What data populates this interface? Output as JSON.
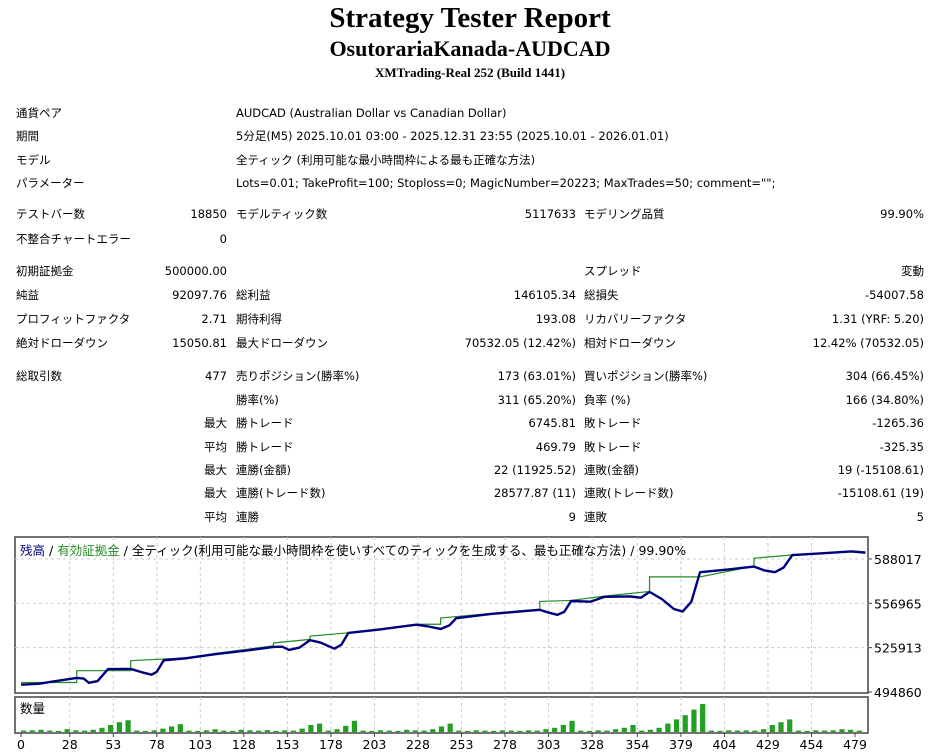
{
  "header": {
    "title": "Strategy Tester Report",
    "subtitle": "OsutorariaKanada-AUDCAD",
    "server": "XMTrading-Real 252 (Build 1441)"
  },
  "info": [
    {
      "label": "通貨ペア",
      "value": "AUDCAD (Australian Dollar vs Canadian Dollar)"
    },
    {
      "label": "期間",
      "value": "5分足(M5) 2025.10.01 03:00 - 2025.12.31 23:55 (2025.10.01 - 2026.01.01)"
    },
    {
      "label": "モデル",
      "value": "全ティック (利用可能な最小時間枠による最も正確な方法)"
    },
    {
      "label": "パラメーター",
      "value": "Lots=0.01; TakeProfit=100; Stoploss=0; MagicNumber=20223; MaxTrades=50; comment=\"\";"
    }
  ],
  "stats": [
    [
      "テストバー数",
      "18850",
      "モデルティック数",
      "5117633",
      "モデリング品質",
      "99.90%"
    ],
    [
      "不整合チャートエラー",
      "0",
      "",
      "",
      "",
      ""
    ],
    [
      "初期証拠金",
      "500000.00",
      "",
      "",
      "スプレッド",
      "変動"
    ],
    [
      "純益",
      "92097.76",
      "総利益",
      "146105.34",
      "総損失",
      "-54007.58"
    ],
    [
      "プロフィットファクタ",
      "2.71",
      "期待利得",
      "193.08",
      "リカバリーファクタ",
      "1.31 (YRF: 5.20)"
    ],
    [
      "絶対ドローダウン",
      "15050.81",
      "最大ドローダウン",
      "70532.05 (12.42%)",
      "相対ドローダウン",
      "12.42% (70532.05)"
    ],
    [
      "総取引数",
      "477",
      "売りポジション(勝率%)",
      "173 (63.01%)",
      "買いポジション(勝率%)",
      "304 (66.45%)"
    ],
    [
      "",
      "",
      "勝率(%)",
      "311 (65.20%)",
      "負率 (%)",
      "166 (34.80%)"
    ],
    [
      "",
      "最大",
      "勝トレード",
      "6745.81",
      "敗トレード",
      "-1265.36"
    ],
    [
      "",
      "平均",
      "勝トレード",
      "469.79",
      "敗トレード",
      "-325.35"
    ],
    [
      "",
      "最大",
      "連勝(金額)",
      "22 (11925.52)",
      "連敗(金額)",
      "19 (-15108.61)"
    ],
    [
      "",
      "最大",
      "連勝(トレード数)",
      "28577.87 (11)",
      "連敗(トレード数)",
      "-15108.61 (19)"
    ],
    [
      "",
      "平均",
      "連勝",
      "9",
      "連敗",
      "5"
    ]
  ],
  "chart_legend": {
    "balance": "残高",
    "sep1": " / ",
    "equity": "有効証拠金",
    "sep2": " / ",
    "model": "全ティック(利用可能な最小時間枠を使いすべてのティックを生成する、最も正確な方法)",
    "sep3": " / ",
    "quality": "99.90%"
  },
  "chart_data": {
    "type": "line",
    "x_ticks": [
      0,
      28,
      53,
      78,
      103,
      128,
      153,
      178,
      203,
      228,
      253,
      278,
      303,
      328,
      354,
      379,
      404,
      429,
      454,
      479
    ],
    "y_ticks": [
      494860,
      525913,
      556965,
      588017
    ],
    "ylim": [
      494860,
      599000
    ],
    "xlim": [
      0,
      485
    ],
    "grid": true,
    "colors": {
      "balance": "#00007f",
      "equity": "#228b22",
      "volume": "#22a022"
    },
    "series": [
      {
        "name": "残高",
        "points": [
          [
            0,
            500000
          ],
          [
            10,
            500600
          ],
          [
            20,
            502500
          ],
          [
            32,
            504700
          ],
          [
            36,
            504300
          ],
          [
            39,
            501300
          ],
          [
            44,
            502500
          ],
          [
            50,
            510900
          ],
          [
            63,
            511000
          ],
          [
            70,
            508500
          ],
          [
            75,
            507000
          ],
          [
            78,
            509000
          ],
          [
            82,
            517100
          ],
          [
            95,
            518500
          ],
          [
            111,
            521300
          ],
          [
            130,
            524000
          ],
          [
            145,
            526400
          ],
          [
            150,
            526600
          ],
          [
            154,
            524300
          ],
          [
            160,
            526000
          ],
          [
            166,
            531200
          ],
          [
            172,
            529500
          ],
          [
            180,
            525200
          ],
          [
            184,
            528000
          ],
          [
            188,
            536200
          ],
          [
            205,
            538500
          ],
          [
            227,
            542000
          ],
          [
            233,
            541000
          ],
          [
            241,
            539000
          ],
          [
            246,
            541500
          ],
          [
            250,
            546600
          ],
          [
            270,
            549500
          ],
          [
            286,
            551200
          ],
          [
            298,
            552400
          ],
          [
            303,
            550500
          ],
          [
            308,
            548900
          ],
          [
            312,
            551000
          ],
          [
            316,
            558600
          ],
          [
            327,
            558100
          ],
          [
            335,
            561500
          ],
          [
            350,
            561800
          ],
          [
            356,
            560900
          ],
          [
            361,
            565000
          ],
          [
            368,
            560000
          ],
          [
            375,
            553000
          ],
          [
            380,
            551200
          ],
          [
            385,
            558000
          ],
          [
            390,
            578800
          ],
          [
            405,
            580500
          ],
          [
            421,
            582700
          ],
          [
            427,
            580000
          ],
          [
            433,
            578800
          ],
          [
            438,
            582000
          ],
          [
            443,
            590800
          ],
          [
            460,
            592000
          ],
          [
            477,
            593300
          ],
          [
            485,
            592400
          ]
        ]
      },
      {
        "name": "有効証拠金",
        "points": [
          [
            0,
            501500
          ],
          [
            32,
            501500
          ],
          [
            32,
            509800
          ],
          [
            63,
            509800
          ],
          [
            63,
            516800
          ],
          [
            95,
            518800
          ],
          [
            111,
            521800
          ],
          [
            145,
            527200
          ],
          [
            145,
            529200
          ],
          [
            166,
            531700
          ],
          [
            166,
            534000
          ],
          [
            188,
            536300
          ],
          [
            227,
            542300
          ],
          [
            241,
            542300
          ],
          [
            241,
            546700
          ],
          [
            286,
            551700
          ],
          [
            298,
            552800
          ],
          [
            298,
            558300
          ],
          [
            316,
            559000
          ],
          [
            335,
            562000
          ],
          [
            361,
            565300
          ],
          [
            361,
            575500
          ],
          [
            390,
            575500
          ],
          [
            421,
            583000
          ],
          [
            421,
            588600
          ],
          [
            443,
            590800
          ],
          [
            477,
            593600
          ],
          [
            485,
            593000
          ]
        ]
      }
    ],
    "volume": {
      "name": "数量",
      "values": [
        0.05,
        0.06,
        0.08,
        0.05,
        0.04,
        0.1,
        0.06,
        0.05,
        0.08,
        0.15,
        0.25,
        0.35,
        0.42,
        0.05,
        0.04,
        0.06,
        0.12,
        0.2,
        0.28,
        0.05,
        0.04,
        0.06,
        0.1,
        0.05,
        0.04,
        0.08,
        0.06,
        0.05,
        0.07,
        0.04,
        0.06,
        0.05,
        0.12,
        0.25,
        0.3,
        0.05,
        0.1,
        0.22,
        0.4,
        0.05,
        0.04,
        0.06,
        0.05,
        0.04,
        0.08,
        0.06,
        0.05,
        0.1,
        0.2,
        0.3,
        0.05,
        0.04,
        0.06,
        0.05,
        0.04,
        0.06,
        0.05,
        0.04,
        0.06,
        0.05,
        0.1,
        0.15,
        0.25,
        0.4,
        0.05,
        0.04,
        0.06,
        0.05,
        0.1,
        0.15,
        0.25,
        0.05,
        0.08,
        0.15,
        0.3,
        0.45,
        0.6,
        0.8,
        1.0,
        0.05,
        0.04,
        0.06,
        0.05,
        0.06,
        0.05,
        0.1,
        0.25,
        0.35,
        0.45,
        0.05,
        0.04,
        0.06,
        0.05,
        0.06,
        0.1,
        0.08,
        0.05
      ]
    }
  }
}
